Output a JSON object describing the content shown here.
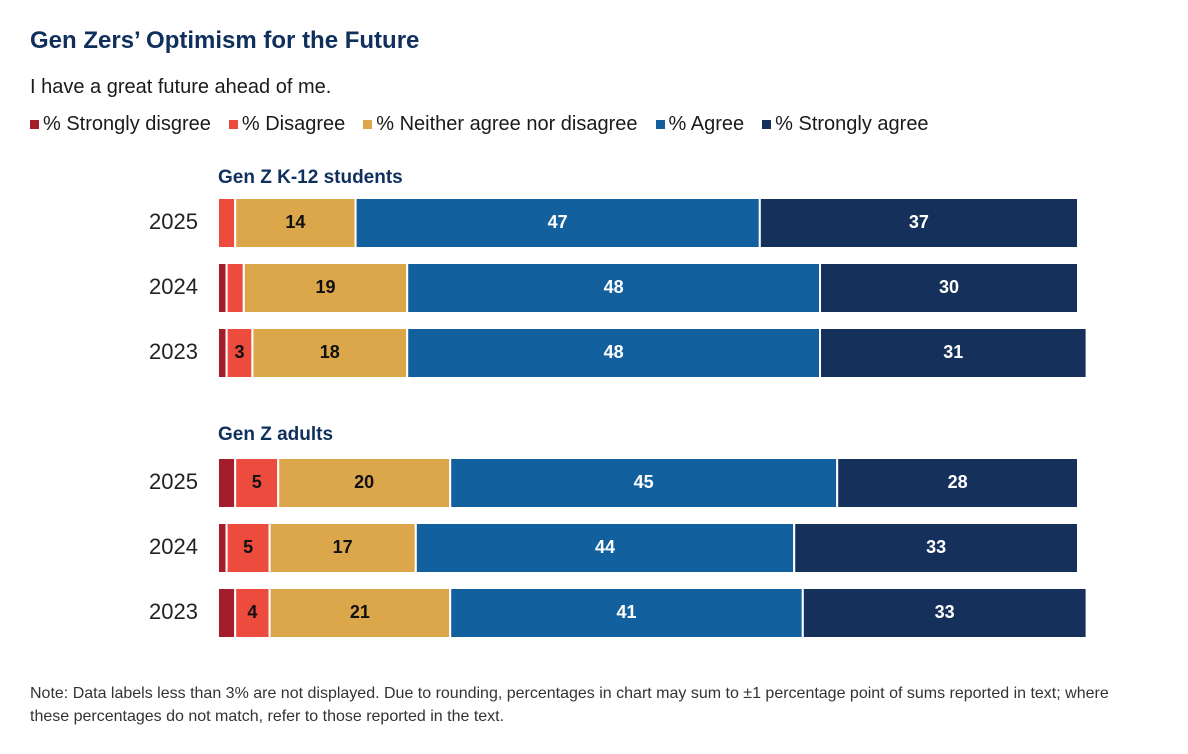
{
  "chart_data": {
    "type": "bar",
    "orientation": "horizontal",
    "stacked": true,
    "title": "Gen Zers’ Optimism for the Future",
    "subtitle": "I have a great future ahead of me.",
    "legend": [
      {
        "name": "% Strongly disgree",
        "color": "#a41d2b"
      },
      {
        "name": "% Disagree",
        "color": "#ec4b3d"
      },
      {
        "name": "% Neither agree nor disagree",
        "color": "#dca74b"
      },
      {
        "name": "% Agree",
        "color": "#12609e"
      },
      {
        "name": "% Strongly agree",
        "color": "#15305a"
      }
    ],
    "legend_position": "top-left",
    "groups": [
      {
        "label": "Gen Z K-12 students",
        "rows": [
          {
            "year": "2025",
            "values": [
              0,
              2,
              14,
              47,
              37
            ]
          },
          {
            "year": "2024",
            "values": [
              1,
              2,
              19,
              48,
              30
            ]
          },
          {
            "year": "2023",
            "values": [
              1,
              3,
              18,
              48,
              31
            ]
          }
        ]
      },
      {
        "label": "Gen Z adults",
        "rows": [
          {
            "year": "2025",
            "values": [
              2,
              5,
              20,
              45,
              28
            ]
          },
          {
            "year": "2024",
            "values": [
              1,
              5,
              17,
              44,
              33
            ]
          },
          {
            "year": "2023",
            "values": [
              2,
              4,
              21,
              41,
              33
            ]
          }
        ]
      }
    ],
    "label_threshold": 3,
    "grid": false
  },
  "note": "Note: Data labels less than 3% are not displayed. Due to rounding, percentages in chart may sum to ±1 percentage point of sums reported in text; where these percentages do not match, refer to those reported in the text."
}
